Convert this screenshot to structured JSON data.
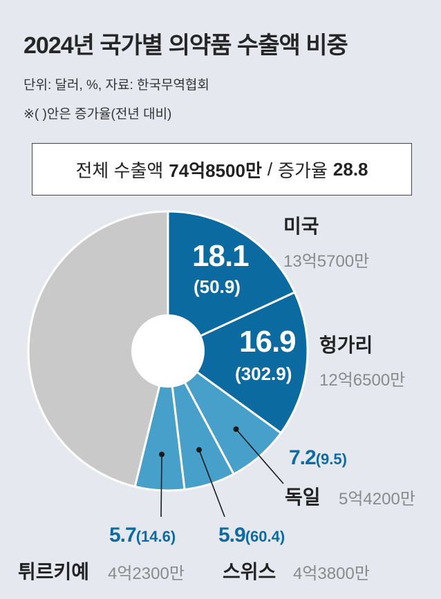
{
  "header": {
    "title": "2024년 국가별 의약품 수출액 비중",
    "unit_note": "단위: 달러, %, 자료: 한국무역협회",
    "paren_note": "※( )안은 증가율(전년 대비)"
  },
  "summary": {
    "total_label": "전체 수출액",
    "total_value": "74억8500만",
    "separator": "/",
    "growth_label": "증가율",
    "growth_value": "28.8"
  },
  "colors": {
    "dark": "#0b6a9f",
    "light": "#46a0c9",
    "other": "#c9c9c9",
    "background": "#e5e9ef"
  },
  "chart_data": {
    "type": "pie",
    "title": "2024년 국가별 의약품 수출액 비중",
    "donut": true,
    "slices": [
      {
        "name": "미국",
        "share": 18.1,
        "growth": "50.9",
        "amount": "13억5700만",
        "color": "#0b6a9f"
      },
      {
        "name": "헝가리",
        "share": 16.9,
        "growth": "302.9",
        "amount": "12억6500만",
        "color": "#0b6a9f"
      },
      {
        "name": "독일",
        "share": 7.2,
        "growth": "9.5",
        "amount": "5억4200만",
        "color": "#46a0c9"
      },
      {
        "name": "스위스",
        "share": 5.9,
        "growth": "60.4",
        "amount": "4억3800만",
        "color": "#46a0c9"
      },
      {
        "name": "튀르키예",
        "share": 5.7,
        "growth": "14.6",
        "amount": "4억2300만",
        "color": "#46a0c9"
      },
      {
        "name": "",
        "share": 46.2,
        "growth": "",
        "amount": "",
        "color": "#c9c9c9"
      }
    ]
  }
}
